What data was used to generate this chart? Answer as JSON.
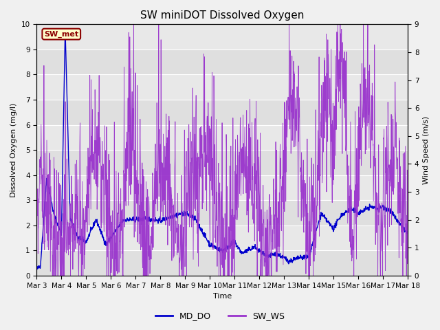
{
  "title": "SW miniDOT Dissolved Oxygen",
  "xlabel": "Time",
  "ylabel_left": "Dissolved Oxygen (mg/l)",
  "ylabel_right": "Wind Speed (m/s)",
  "ylim_left": [
    0.0,
    10.0
  ],
  "ylim_right": [
    0.0,
    9.0
  ],
  "xtick_labels": [
    "Mar 3",
    "Mar 4",
    "Mar 5",
    "Mar 6",
    "Mar 7",
    "Mar 8",
    "Mar 9",
    "Mar 10",
    "Mar 11",
    "Mar 12",
    "Mar 13",
    "Mar 14",
    "Mar 15",
    "Mar 16",
    "Mar 17",
    "Mar 18"
  ],
  "md_do_color": "#0000cc",
  "sw_ws_color": "#9933cc",
  "annotation_text": "SW_met",
  "background_color": "#e8e8e8",
  "plot_bg_color": "#dcdcdc",
  "grid_color": "#ffffff",
  "legend_md_do": "MD_DO",
  "legend_sw_ws": "SW_WS",
  "title_fontsize": 11,
  "label_fontsize": 8,
  "tick_fontsize": 7.5,
  "annotation_facecolor": "#ffffcc",
  "annotation_edgecolor": "#8b0000"
}
